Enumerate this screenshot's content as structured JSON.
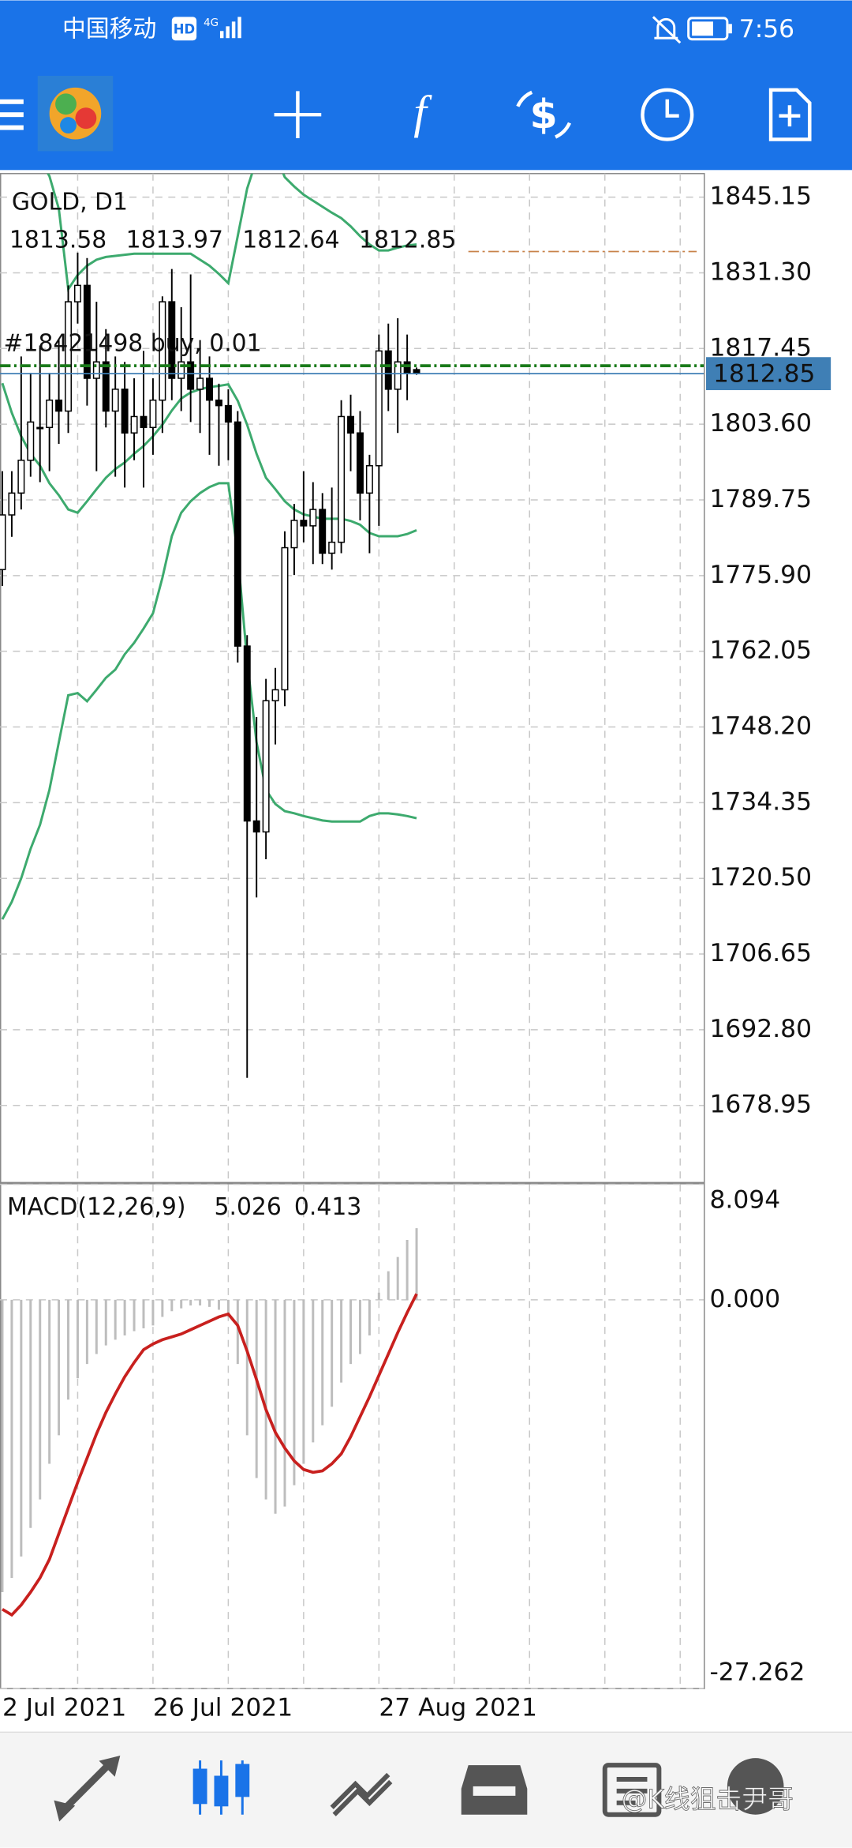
{
  "status_bar": {
    "carrier": "中国移动",
    "hd": "HD",
    "network": "4G",
    "time": "7:56"
  },
  "chart_data": [
    {
      "type": "candlestick",
      "title": "GOLD, D1",
      "categories": [
        "2 Jul 2021",
        null,
        null,
        null,
        null,
        null,
        null,
        null,
        null,
        null,
        null,
        null,
        null,
        null,
        null,
        null,
        "26 Jul 2021",
        null,
        null,
        null,
        null,
        null,
        null,
        null,
        null,
        null,
        null,
        null,
        null,
        null,
        null,
        null,
        null,
        null,
        null,
        null,
        null,
        null,
        null,
        null,
        "27 Aug 2021",
        null,
        null,
        null,
        null
      ],
      "candles": [
        [
          1777,
          1795,
          1774,
          1787
        ],
        [
          1787,
          1795,
          1783,
          1791
        ],
        [
          1791,
          1816,
          1788,
          1797
        ],
        [
          1797,
          1813,
          1794,
          1804
        ],
        [
          1803,
          1818,
          1793,
          1803
        ],
        [
          1803,
          1813,
          1795,
          1808
        ],
        [
          1808,
          1819,
          1800,
          1806
        ],
        [
          1806,
          1829,
          1802,
          1826
        ],
        [
          1826,
          1835,
          1822,
          1829
        ],
        [
          1829,
          1834,
          1807,
          1812
        ],
        [
          1812,
          1826,
          1795,
          1815
        ],
        [
          1815,
          1821,
          1803,
          1806
        ],
        [
          1806,
          1816,
          1794,
          1810
        ],
        [
          1810,
          1815,
          1792,
          1802
        ],
        [
          1802,
          1812,
          1797,
          1805
        ],
        [
          1805,
          1817,
          1792,
          1803
        ],
        [
          1803,
          1812,
          1798,
          1808
        ],
        [
          1808,
          1827,
          1802,
          1826
        ],
        [
          1826,
          1832,
          1808,
          1812
        ],
        [
          1812,
          1825,
          1806,
          1815
        ],
        [
          1815,
          1831,
          1804,
          1810
        ],
        [
          1810,
          1819,
          1802,
          1812
        ],
        [
          1812,
          1816,
          1798,
          1808
        ],
        [
          1808,
          1811,
          1796,
          1807
        ],
        [
          1807,
          1810,
          1797,
          1804
        ],
        [
          1804,
          1806,
          1760,
          1763
        ],
        [
          1763,
          1765,
          1684,
          1731
        ],
        [
          1731,
          1750,
          1717,
          1729
        ],
        [
          1729,
          1757,
          1724,
          1753
        ],
        [
          1753,
          1759,
          1745,
          1755
        ],
        [
          1755,
          1784,
          1752,
          1781
        ],
        [
          1781,
          1789,
          1776,
          1786
        ],
        [
          1786,
          1795,
          1782,
          1785
        ],
        [
          1785,
          1793,
          1778,
          1788
        ],
        [
          1788,
          1791,
          1778,
          1780
        ],
        [
          1780,
          1792,
          1777,
          1782
        ],
        [
          1782,
          1808,
          1780,
          1805
        ],
        [
          1805,
          1809,
          1795,
          1802
        ],
        [
          1802,
          1806,
          1786,
          1791
        ],
        [
          1791,
          1798,
          1780,
          1796
        ],
        [
          1796,
          1820,
          1785,
          1817
        ],
        [
          1817,
          1822,
          1806,
          1810
        ],
        [
          1810,
          1823,
          1802,
          1815
        ],
        [
          1815,
          1820,
          1808,
          1813
        ],
        [
          1813.58,
          1813.97,
          1812.64,
          1812.85
        ]
      ],
      "up_color": "#ffffff",
      "down_color": "#000000",
      "bands": {
        "color": "#3daa6e",
        "upper": [
          1858,
          1857,
          1856,
          1854,
          1852,
          1849,
          1843,
          1828.3,
          1830.9,
          1832.6,
          1833.7,
          1834.2,
          1834.4,
          1834.6,
          1834.8,
          1834.8,
          1834.8,
          1834.8,
          1834.8,
          1834.8,
          1834.8,
          1833.7,
          1832.6,
          1831.1,
          1829.4,
          1838.0,
          1846.7,
          1852,
          1854,
          1853,
          1848.8,
          1847.1,
          1845.6,
          1844.5,
          1843.4,
          1842.3,
          1841.3,
          1839.8,
          1838.0,
          1836.5,
          1835.4,
          1835.4,
          1835.9,
          1836.3,
          1836.5
        ],
        "middle": [
          1811.1,
          1805.7,
          1801.4,
          1798.2,
          1796.0,
          1792.8,
          1790.6,
          1788.0,
          1787.4,
          1789.5,
          1791.7,
          1793.8,
          1795.4,
          1796.6,
          1798.2,
          1799.6,
          1801.4,
          1803.5,
          1806.1,
          1808.3,
          1809.4,
          1810.0,
          1810.4,
          1810.6,
          1810.9,
          1807.9,
          1803.5,
          1798.2,
          1793.8,
          1791.7,
          1789.5,
          1788.0,
          1787.1,
          1786.7,
          1786.3,
          1786.3,
          1786.3,
          1785.9,
          1785.2,
          1783.7,
          1783.1,
          1783.1,
          1783.1,
          1783.5,
          1784.2
        ],
        "lower": [
          1713.0,
          1716.2,
          1720.5,
          1725.9,
          1730.3,
          1736.7,
          1745.4,
          1754.0,
          1754.4,
          1752.9,
          1755.0,
          1757.2,
          1758.7,
          1761.5,
          1763.6,
          1766.2,
          1769.0,
          1775.5,
          1783.1,
          1787.4,
          1789.5,
          1791.0,
          1792.1,
          1792.8,
          1792.8,
          1779.8,
          1760.4,
          1745.4,
          1736.7,
          1734.1,
          1732.8,
          1732.4,
          1731.9,
          1731.5,
          1731.1,
          1730.9,
          1730.9,
          1730.9,
          1730.9,
          1731.9,
          1732.4,
          1732.4,
          1732.2,
          1731.9,
          1731.5
        ]
      },
      "levels": [
        {
          "value": 1814.3,
          "color": "#1a7a1a",
          "label": "#18421498 buy, 0.01"
        },
        {
          "value": 1835.2,
          "color": "#c8824a"
        }
      ],
      "price_line_color": "#3f7fb5",
      "ylim": [
        1664.94,
        1849.46
      ],
      "yticks": [
        1845.15,
        {
          "value": 1831.3,
          "label": "1831.30"
        },
        1817.45,
        {
          "value": 1803.6,
          "label": "1803.60"
        },
        1789.75,
        {
          "value": 1775.9,
          "label": "1775.90"
        },
        1762.05,
        {
          "value": 1748.2,
          "label": "1748.20"
        },
        1734.35,
        {
          "value": 1720.5,
          "label": "1720.50"
        },
        1706.65,
        {
          "value": 1692.8,
          "label": "1692.80"
        },
        1678.95
      ],
      "grid": true
    },
    {
      "type": "macd",
      "title": "MACD(12,26,9)",
      "macd": [
        -20.5,
        -19.5,
        -18,
        -16,
        -14,
        -11.5,
        -9.5,
        -7,
        -5.5,
        -4.5,
        -3.8,
        -3.2,
        -2.8,
        -2.5,
        -2.2,
        -2,
        -1.8,
        -1.2,
        -0.8,
        -0.6,
        -0.4,
        -0.4,
        -0.5,
        -0.7,
        -1.2,
        -4.5,
        -9.5,
        -12.5,
        -14,
        -15,
        -14.5,
        -13,
        -11.5,
        -10,
        -8.8,
        -7.5,
        -5.8,
        -4.5,
        -3.8,
        -2.5,
        0.5,
        2,
        3,
        4.2,
        5.026
      ],
      "signal": [
        -21.7,
        -22.1,
        -21.4,
        -20.5,
        -19.5,
        -18.2,
        -16.4,
        -14.6,
        -12.8,
        -11.1,
        -9.4,
        -7.9,
        -6.6,
        -5.4,
        -4.4,
        -3.5,
        -3.1,
        -2.8,
        -2.6,
        -2.4,
        -2.1,
        -1.8,
        -1.5,
        -1.2,
        -1.0,
        -1.8,
        -3.6,
        -5.6,
        -7.7,
        -9.3,
        -10.4,
        -11.3,
        -11.9,
        -12.1,
        -12.0,
        -11.5,
        -10.8,
        -9.6,
        -8.2,
        -6.8,
        -5.3,
        -3.8,
        -2.3,
        -0.9,
        0.413
      ],
      "macd_color": "#bdbdbd",
      "signal_color": "#c8201e",
      "ylim": [
        -27.262,
        8.094
      ],
      "yticks": [
        8.094,
        {
          "value": 0,
          "label": "0.000"
        },
        -27.262
      ],
      "grid": true
    }
  ],
  "watermark": "@K线狙击尹哥"
}
